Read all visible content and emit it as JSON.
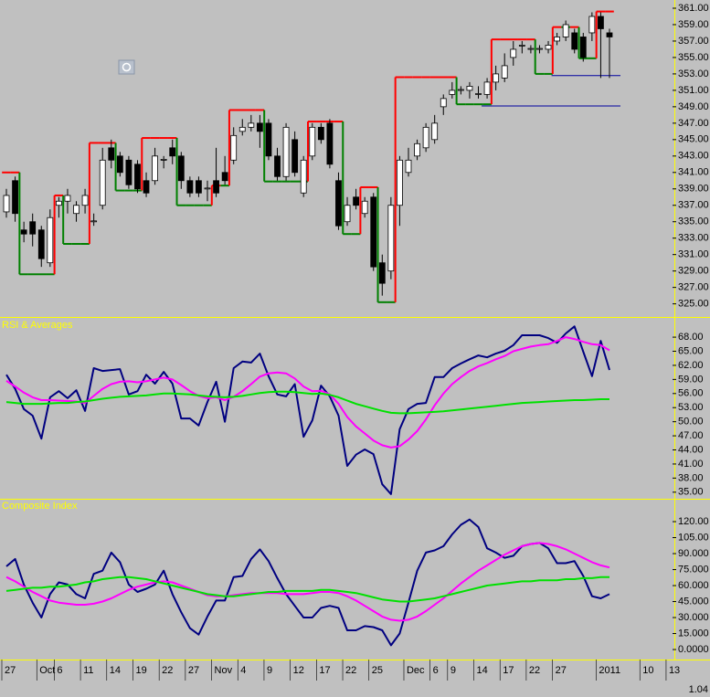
{
  "corner_label": "1.04",
  "chart_data": [
    {
      "type": "candlestick",
      "categories": [
        "27",
        null,
        null,
        null,
        "Oct",
        null,
        "6",
        null,
        null,
        "11",
        null,
        null,
        "14",
        null,
        null,
        "19",
        null,
        null,
        "22",
        null,
        null,
        "27",
        null,
        null,
        "Nov",
        null,
        null,
        "4",
        null,
        null,
        "9",
        null,
        null,
        "12",
        null,
        null,
        "17",
        null,
        null,
        "22",
        null,
        null,
        "25",
        null,
        null,
        null,
        "Dec",
        null,
        null,
        "6",
        null,
        "9",
        null,
        null,
        "14",
        null,
        null,
        "17",
        null,
        null,
        "22",
        null,
        null,
        "27",
        null,
        null,
        null,
        null,
        "2011",
        null,
        null,
        null,
        null,
        "10",
        null,
        null,
        "13"
      ],
      "open": [
        336.2,
        340,
        334,
        335,
        334,
        330,
        337,
        337.5,
        336,
        337,
        335,
        337,
        344,
        343,
        342.5,
        342,
        340,
        340,
        342.5,
        344,
        343,
        340,
        340,
        339,
        340,
        341,
        342.5,
        346,
        346.5,
        347,
        347,
        343,
        340.5,
        345,
        338.5,
        343,
        346.5,
        347,
        340,
        335,
        338,
        336,
        338,
        330,
        329,
        337,
        341,
        343,
        344,
        345,
        349,
        350.5,
        351,
        351,
        350.5,
        350.5,
        352,
        352.5,
        355,
        356.4,
        356,
        356,
        356,
        357,
        357.5,
        358,
        357.5,
        358,
        360,
        358,
        null,
        null,
        null,
        null,
        null,
        null,
        null
      ],
      "high": [
        339,
        340.5,
        335,
        336,
        334.5,
        336.5,
        338,
        339,
        337.5,
        339,
        336,
        344,
        345,
        343.5,
        343,
        342.5,
        341,
        344,
        343,
        345,
        343.5,
        340.5,
        340.5,
        340,
        344,
        343,
        346.5,
        347.5,
        348,
        348,
        347.5,
        344,
        347,
        346,
        343,
        347,
        347,
        347.5,
        341,
        338,
        339,
        338,
        338.5,
        331,
        338,
        343,
        344,
        345,
        347,
        348,
        350.5,
        352,
        351.5,
        352,
        351.5,
        352.5,
        354,
        355.5,
        357,
        357,
        356.5,
        356.5,
        357,
        358,
        359.5,
        358.5,
        358,
        360.5,
        360.5,
        358.5,
        null,
        null,
        null,
        null,
        null,
        null,
        null
      ],
      "low": [
        335.5,
        335,
        332.5,
        332,
        329.5,
        329.5,
        335.5,
        336,
        335,
        336,
        334.5,
        336.5,
        341.5,
        340.5,
        339,
        338.5,
        338,
        339.5,
        341.5,
        342,
        339,
        338,
        338,
        337.5,
        338,
        339.5,
        342,
        345.5,
        346,
        344,
        342.5,
        340,
        340,
        340.5,
        338,
        342.5,
        344.5,
        341.5,
        334,
        334.5,
        336.5,
        335.5,
        329,
        326,
        328,
        334.5,
        340.5,
        342.5,
        343.5,
        344.5,
        348,
        350,
        350.5,
        350,
        350,
        350,
        351,
        352,
        354,
        355.5,
        355.5,
        355.5,
        355.5,
        356.5,
        357,
        355.5,
        354.5,
        357,
        352.5,
        352.5,
        null,
        null,
        null,
        null,
        null,
        null,
        null
      ],
      "close": [
        338.2,
        336,
        333.5,
        333.5,
        330.5,
        335.5,
        337.5,
        338.2,
        337,
        338.2,
        335.1,
        342.5,
        342.5,
        341,
        339.5,
        339,
        338.5,
        343,
        342.6,
        343,
        340,
        338.5,
        338.5,
        339.1,
        338.5,
        340,
        345.5,
        346.5,
        347,
        346,
        343,
        340.5,
        346.5,
        341,
        342.5,
        346.5,
        345,
        342,
        334.5,
        337,
        337,
        337.5,
        329.5,
        327.5,
        337,
        342.5,
        342.5,
        344.5,
        346.5,
        347,
        350,
        351,
        351.1,
        351.5,
        350.6,
        352,
        353,
        354,
        356,
        356.5,
        356.1,
        356.1,
        356.5,
        357.5,
        359,
        356,
        355,
        360,
        358.5,
        357.5,
        null,
        null,
        null,
        null,
        null,
        null,
        null
      ],
      "stop": [
        341,
        341,
        328.6,
        328.6,
        328.6,
        328.6,
        338.2,
        332.3,
        332.3,
        332.3,
        344.6,
        344.6,
        344.6,
        338.8,
        338.8,
        338.8,
        345.2,
        345.2,
        345.2,
        345.2,
        337,
        337,
        337,
        337,
        339.4,
        339.4,
        348.6,
        348.6,
        348.6,
        348.6,
        339.9,
        339.9,
        339.9,
        339.9,
        339.9,
        347.2,
        347.2,
        347.2,
        347.2,
        333.5,
        333.5,
        339.2,
        339.2,
        325.2,
        325.2,
        352.6,
        352.6,
        352.6,
        352.6,
        352.6,
        352.6,
        352.6,
        349.3,
        349.3,
        349.3,
        349.3,
        357.2,
        357.2,
        357.2,
        357.2,
        357.2,
        353,
        353,
        358.7,
        358.7,
        358.7,
        354.9,
        354.9,
        360.6,
        360.6,
        null,
        null,
        null,
        null,
        null,
        null,
        null
      ],
      "stop_colors": {
        "above": "#ff0000",
        "below": "#008000"
      },
      "up_color": "#ffffff",
      "down_color": "#000000",
      "levels": [
        352.8,
        349.1
      ],
      "level_color": "#0000a0",
      "ylim": [
        323.4,
        362
      ],
      "yticks": [
        {
          "value": 361,
          "label": "361.00"
        },
        {
          "value": 359,
          "label": "359.00"
        },
        {
          "value": 357,
          "label": "357.00"
        },
        {
          "value": 355,
          "label": "355.00"
        },
        {
          "value": 353,
          "label": "353.00"
        },
        {
          "value": 351,
          "label": "351.00"
        },
        {
          "value": 349,
          "label": "349.00"
        },
        {
          "value": 347,
          "label": "347.00"
        },
        {
          "value": 345,
          "label": "345.00"
        },
        {
          "value": 343,
          "label": "343.00"
        },
        {
          "value": 341,
          "label": "341.00"
        },
        {
          "value": 339,
          "label": "339.00"
        },
        {
          "value": 337,
          "label": "337.00"
        },
        {
          "value": 335,
          "label": "335.00"
        },
        {
          "value": 333,
          "label": "333.00"
        },
        {
          "value": 331,
          "label": "331.00"
        },
        {
          "value": 329,
          "label": "329.00"
        },
        {
          "value": 327,
          "label": "327.00"
        },
        {
          "value": 325,
          "label": "325.00"
        }
      ]
    },
    {
      "type": "line",
      "title": "RSI & Averages",
      "series": [
        {
          "color": "#000080",
          "values": [
            60,
            57,
            52.7,
            51.3,
            46.4,
            55.2,
            56.5,
            55,
            56.7,
            52.3,
            61.4,
            60.8,
            61,
            61.2,
            55.8,
            56.5,
            60,
            58.1,
            60.6,
            58.1,
            50.7,
            50.7,
            49.2,
            54.2,
            58.5,
            50,
            61.4,
            62.8,
            62.6,
            64.5,
            59.7,
            55.8,
            55.4,
            58,
            46.8,
            50.3,
            57.7,
            55.4,
            51.3,
            40.6,
            43,
            44.1,
            43.1,
            36.7,
            34.6,
            48.4,
            52.7,
            53.8,
            54,
            59.5,
            59.5,
            61.4,
            62.4,
            63.3,
            64.1,
            63.7,
            64.5,
            65.1,
            66.3,
            68.4,
            68.4,
            68.4,
            67.8,
            66.8,
            68.8,
            70.3,
            64.9,
            59.7,
            67.2,
            61
          ]
        },
        {
          "color": "#ff00ff",
          "values": [
            58.7,
            57.5,
            56.2,
            55.2,
            54.6,
            54.6,
            54.5,
            54.4,
            54.3,
            54,
            55.5,
            57,
            58,
            58.5,
            58.6,
            58.4,
            58.6,
            59,
            59.4,
            59,
            57.8,
            56.5,
            55.5,
            55,
            55.2,
            54.6,
            55.3,
            56.5,
            58,
            59.6,
            60.3,
            60.5,
            60.3,
            59.2,
            57.5,
            56.5,
            56.6,
            55.8,
            53.8,
            51,
            49,
            47.5,
            46,
            45,
            44.5,
            44.8,
            46.2,
            48,
            50.5,
            53.5,
            56,
            58,
            59.5,
            60.8,
            61.8,
            62.5,
            63.3,
            64,
            65,
            65.5,
            66,
            66.3,
            66.5,
            67.2,
            68,
            67.6,
            67,
            66.5,
            66.3,
            65.2
          ]
        },
        {
          "color": "#00e000",
          "values": [
            54.2,
            54,
            53.8,
            53.8,
            53.8,
            53.9,
            54,
            54,
            54.2,
            54.3,
            54.6,
            54.9,
            55.1,
            55.3,
            55.4,
            55.5,
            55.6,
            55.8,
            56,
            56,
            55.9,
            55.8,
            55.6,
            55.4,
            55.3,
            55.2,
            55.3,
            55.5,
            55.8,
            56.1,
            56.3,
            56.4,
            56.4,
            56.3,
            56.1,
            55.9,
            56,
            55.7,
            55.2,
            54.5,
            53.8,
            53.3,
            52.8,
            52.3,
            51.9,
            51.8,
            51.8,
            51.9,
            52,
            52.1,
            52.2,
            52.4,
            52.6,
            52.8,
            53,
            53.2,
            53.4,
            53.6,
            53.8,
            54,
            54.1,
            54.2,
            54.3,
            54.4,
            54.5,
            54.6,
            54.6,
            54.7,
            54.8,
            54.8
          ]
        }
      ],
      "ylim": [
        33.6,
        72.1
      ],
      "yticks": [
        {
          "value": 68,
          "label": "68.00"
        },
        {
          "value": 65,
          "label": "65.00"
        },
        {
          "value": 62,
          "label": "62.00"
        },
        {
          "value": 59,
          "label": "59.00"
        },
        {
          "value": 56,
          "label": "56.00"
        },
        {
          "value": 53,
          "label": "53.00"
        },
        {
          "value": 50,
          "label": "50.00"
        },
        {
          "value": 47,
          "label": "47.00"
        },
        {
          "value": 44,
          "label": "44.00"
        },
        {
          "value": 41,
          "label": "41.00"
        },
        {
          "value": 38,
          "label": "38.00"
        },
        {
          "value": 35,
          "label": "35.00"
        }
      ]
    },
    {
      "type": "line",
      "title": "Composite Index",
      "series": [
        {
          "color": "#000080",
          "values": [
            78,
            85,
            61,
            44,
            30,
            52,
            63,
            61,
            52,
            48,
            71,
            74,
            91,
            82,
            61,
            54,
            57,
            61,
            74,
            52,
            35,
            20,
            14,
            31,
            46,
            46,
            68,
            69,
            85,
            94,
            83,
            67,
            52,
            41,
            30,
            30,
            39,
            41,
            39,
            18,
            18,
            22,
            21,
            18,
            4,
            15,
            44,
            74,
            91,
            93,
            97,
            108,
            117,
            122,
            115,
            95,
            91,
            86,
            88,
            97,
            99,
            100,
            95,
            81,
            81,
            83,
            69,
            50,
            48,
            52
          ]
        },
        {
          "color": "#ff00ff",
          "values": [
            68,
            64,
            59,
            54,
            50,
            46,
            44,
            43,
            42,
            42,
            43,
            45,
            48,
            52,
            56,
            59,
            61,
            63,
            64,
            63,
            60,
            57,
            54,
            51,
            50,
            50,
            51,
            52,
            53,
            53,
            53,
            53,
            52,
            52,
            52,
            53,
            54,
            54,
            53,
            50,
            46,
            41,
            36,
            31,
            28,
            27,
            28,
            31,
            36,
            42,
            48,
            55,
            62,
            68,
            74,
            79,
            84,
            89,
            93,
            97,
            99,
            100,
            99,
            97,
            94,
            90,
            86,
            82,
            79,
            77
          ]
        },
        {
          "color": "#00e000",
          "values": [
            55,
            56,
            57,
            58,
            58,
            59,
            59,
            60,
            61,
            63,
            64,
            66,
            67,
            68,
            68,
            67,
            66,
            64,
            62,
            60,
            58,
            56,
            54,
            52,
            51,
            50,
            50,
            51,
            52,
            53,
            54,
            54,
            55,
            55,
            55,
            55,
            56,
            56,
            55,
            54,
            53,
            51,
            49,
            47,
            46,
            45,
            45,
            46,
            47,
            48,
            50,
            52,
            54,
            56,
            58,
            60,
            61,
            62,
            63,
            64,
            64,
            65,
            65,
            65,
            66,
            66,
            67,
            67,
            68,
            68
          ]
        }
      ],
      "ylim": [
        -9.4,
        140.6
      ],
      "yticks": [
        {
          "value": 120,
          "label": "120.00"
        },
        {
          "value": 105,
          "label": "105.00"
        },
        {
          "value": 90,
          "label": "90.000"
        },
        {
          "value": 75,
          "label": "75.000"
        },
        {
          "value": 60,
          "label": "60.000"
        },
        {
          "value": 45,
          "label": "45.000"
        },
        {
          "value": 30,
          "label": "30.000"
        },
        {
          "value": 15,
          "label": "15.000"
        },
        {
          "value": 0,
          "label": "0.0000"
        }
      ]
    }
  ]
}
